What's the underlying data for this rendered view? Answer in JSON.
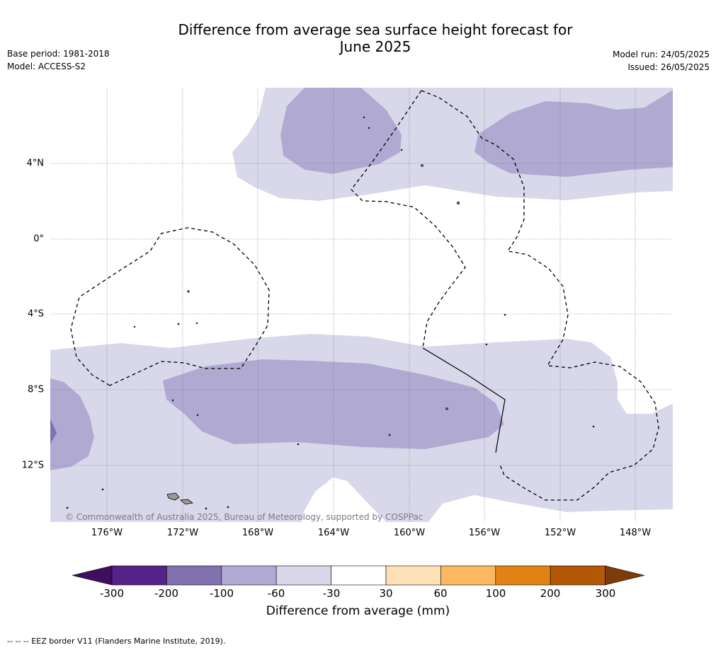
{
  "title_line1": "Difference from average sea surface height forecast for",
  "title_line2": "June 2025",
  "meta_left": [
    "Base period: 1981-2018",
    "Model: ACCESS-S2"
  ],
  "meta_right": [
    "Model run: 24/05/2025",
    "Issued: 26/05/2025"
  ],
  "lat_labels": [
    "4°N",
    "0°",
    "4°S",
    "8°S",
    "12°S"
  ],
  "lon_labels": [
    "176°W",
    "172°W",
    "168°W",
    "164°W",
    "160°W",
    "156°W",
    "152°W",
    "148°W"
  ],
  "copyright": "© Commonwealth of Australia 2025, Bureau of Meteorology, supported by COSPPac",
  "colorbar": {
    "ticks": [
      "-300",
      "-200",
      "-100",
      "-60",
      "-30",
      "30",
      "60",
      "100",
      "200",
      "300"
    ],
    "colors": [
      "#3f0f5e",
      "#55238a",
      "#7f72ae",
      "#b0aad2",
      "#d8d8ea",
      "#ffffff",
      "#fee0b6",
      "#fbb861",
      "#e08214",
      "#b35806",
      "#7f3b08"
    ],
    "label": "Difference from average (mm)"
  },
  "footnote": "--  --  -- EEZ border V11 (Flanders Marine Institute, 2019).",
  "palette": {
    "light_lavender": "#d8d8ea",
    "mid_lavender": "#b0aad2",
    "dark_lavender": "#7f72ae",
    "land": "#999999"
  }
}
